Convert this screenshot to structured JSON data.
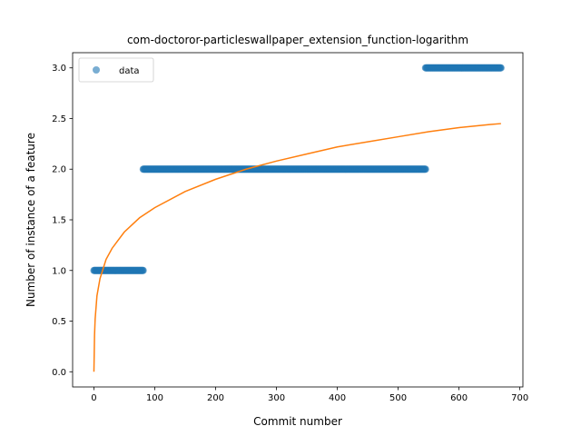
{
  "chart_data": {
    "type": "scatter",
    "title": "com-doctoror-particleswallpaper_extension_function-logarithm",
    "xlabel": "Commit number",
    "ylabel": "Number of instance of a feature",
    "xlim": [
      -35,
      705
    ],
    "ylim": [
      -0.15,
      3.15
    ],
    "xticks": [
      0,
      100,
      200,
      300,
      400,
      500,
      600,
      700
    ],
    "yticks": [
      0.0,
      0.5,
      1.0,
      1.5,
      2.0,
      2.5,
      3.0
    ],
    "ytick_labels": [
      "0.0",
      "0.5",
      "1.0",
      "1.5",
      "2.0",
      "2.5",
      "3.0"
    ],
    "grid": false,
    "legend": {
      "placement": "top-left",
      "entries": [
        "data"
      ]
    },
    "series": [
      {
        "name": "data",
        "kind": "scatter",
        "color": "#1f77b4",
        "segments": [
          {
            "x_start": 0,
            "x_end": 81,
            "y": 1
          },
          {
            "x_start": 81,
            "x_end": 545,
            "y": 2
          },
          {
            "x_start": 545,
            "x_end": 669,
            "y": 3
          }
        ]
      },
      {
        "kind": "line",
        "color": "#ff7f0e",
        "function": "logarithmic",
        "points": [
          [
            0,
            0.0
          ],
          [
            1,
            0.36
          ],
          [
            2,
            0.52
          ],
          [
            5,
            0.75
          ],
          [
            10,
            0.92
          ],
          [
            20,
            1.11
          ],
          [
            30,
            1.22
          ],
          [
            50,
            1.38
          ],
          [
            75,
            1.52
          ],
          [
            100,
            1.62
          ],
          [
            150,
            1.78
          ],
          [
            200,
            1.9
          ],
          [
            250,
            2.0
          ],
          [
            300,
            2.08
          ],
          [
            350,
            2.15
          ],
          [
            400,
            2.22
          ],
          [
            450,
            2.27
          ],
          [
            500,
            2.32
          ],
          [
            550,
            2.37
          ],
          [
            600,
            2.41
          ],
          [
            650,
            2.44
          ],
          [
            669,
            2.45
          ]
        ]
      }
    ]
  }
}
